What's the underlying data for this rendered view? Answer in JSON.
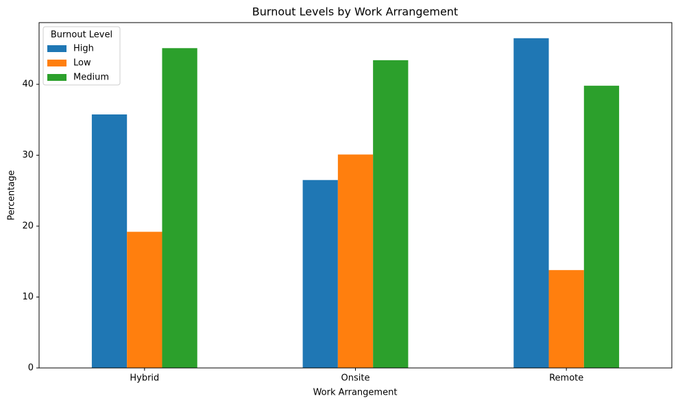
{
  "chart_data": {
    "type": "bar",
    "title": "Burnout Levels by Work Arrangement",
    "x_label": "Work Arrangement",
    "y_label": "Percentage",
    "categories": [
      "Hybrid",
      "Onsite",
      "Remote"
    ],
    "series": [
      {
        "name": "High",
        "color": "#1f77b4",
        "values": [
          35.75,
          26.5,
          46.5
        ]
      },
      {
        "name": "Low",
        "color": "#ff7f0e",
        "values": [
          19.2,
          30.1,
          13.8
        ]
      },
      {
        "name": "Medium",
        "color": "#2ca02c",
        "values": [
          45.1,
          43.4,
          39.8
        ]
      }
    ],
    "legend_title": "Burnout Level",
    "legend_position": "upper left",
    "ylim": [
      0,
      48.7
    ],
    "yticks": [
      0,
      10,
      20,
      30,
      40
    ],
    "grid": false
  }
}
